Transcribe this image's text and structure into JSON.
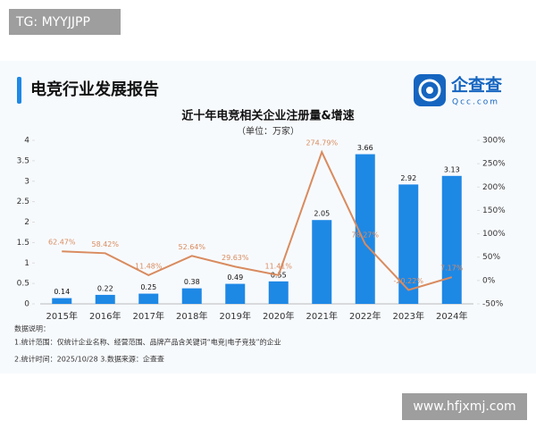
{
  "watermark_top": "TG: MYYJJPP",
  "header": {
    "title": "电竞行业发展报告",
    "logo_name": "企查查",
    "logo_domain": "Qcc.com"
  },
  "chart_data": {
    "type": "bar",
    "title": "近十年电竞相关企业注册量&增速",
    "subtitle": "（单位：万家）",
    "categories": [
      "2015年",
      "2016年",
      "2017年",
      "2018年",
      "2019年",
      "2020年",
      "2021年",
      "2022年",
      "2023年",
      "2024年"
    ],
    "series": [
      {
        "type": "bar",
        "color": "#1e88e5",
        "values": [
          0.14,
          0.22,
          0.25,
          0.38,
          0.49,
          0.55,
          2.05,
          3.66,
          2.92,
          3.13
        ]
      },
      {
        "type": "line",
        "axis": "y2",
        "color": "#d98b5f",
        "values": [
          62.47,
          58.42,
          11.48,
          52.64,
          29.63,
          11.41,
          274.79,
          78.27,
          -20.22,
          7.17
        ],
        "value_labels": [
          "62.47%",
          "58.42%",
          "11.48%",
          "52.64%",
          "29.63%",
          "11.41%",
          "274.79%",
          "78.27%",
          "-20.22%",
          "7.17%"
        ]
      }
    ],
    "ylim": [
      0,
      4
    ],
    "yticks": [
      0,
      0.5,
      1,
      1.5,
      2,
      2.5,
      3,
      3.5,
      4
    ],
    "y2lim": [
      -50,
      300
    ],
    "y2ticks": [
      {
        "value": -50,
        "label": "-50%"
      },
      {
        "value": 0,
        "label": "0%"
      },
      {
        "value": 50,
        "label": "50%"
      },
      {
        "value": 100,
        "label": "100%"
      },
      {
        "value": 150,
        "label": "150%"
      },
      {
        "value": 200,
        "label": "200%"
      },
      {
        "value": 250,
        "label": "250%"
      },
      {
        "value": 300,
        "label": "300%"
      }
    ],
    "grid": false
  },
  "notes": {
    "heading": "数据说明：",
    "lines": [
      "1.统计范围：仅统计企业名称、经营范围、品牌产品含关键词“电竞|电子竞技”的企业",
      "2.统计时间：2025/10/28 3.数据来源：企查查"
    ]
  },
  "watermark_bottom": "www.hfjxmj.com"
}
